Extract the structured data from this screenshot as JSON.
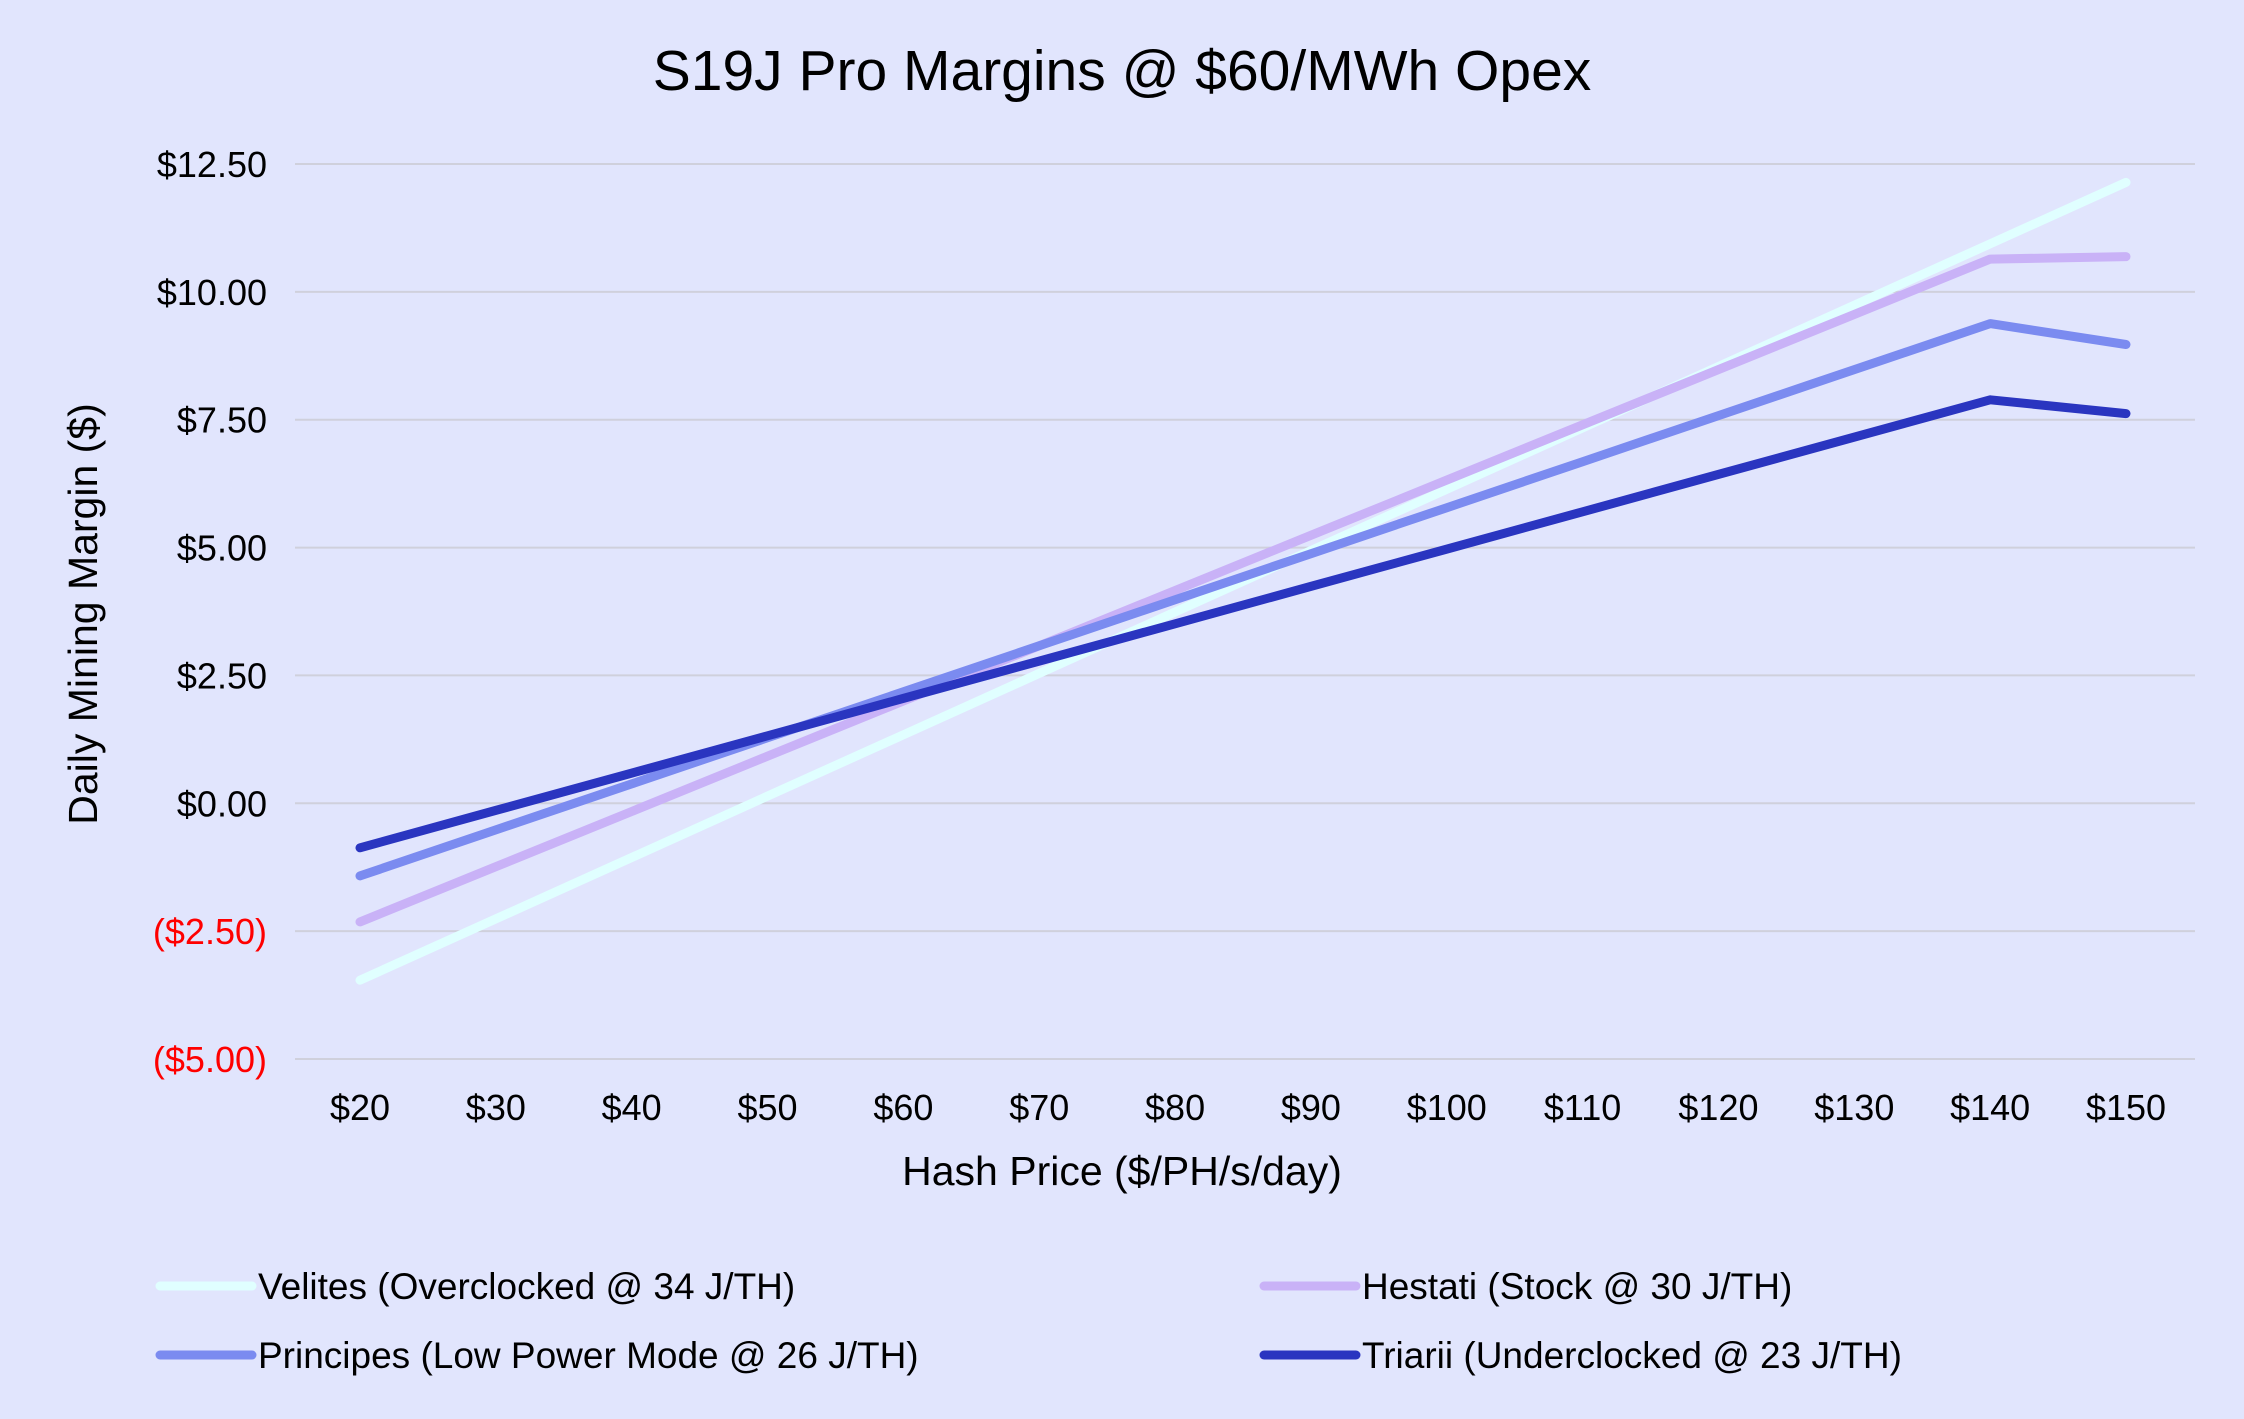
{
  "chart_data": {
    "type": "line",
    "title": "S19J Pro Margins @ $60/MWh Opex",
    "xlabel": "Hash Price ($/PH/s/day)",
    "ylabel": "Daily Mining Margin ($)",
    "x": [
      20,
      30,
      40,
      50,
      60,
      70,
      80,
      90,
      100,
      110,
      120,
      130,
      140,
      150
    ],
    "x_tick_labels": [
      "$20",
      "$30",
      "$40",
      "$50",
      "$60",
      "$70",
      "$80",
      "$90",
      "$100",
      "$110",
      "$120",
      "$130",
      "$140",
      "$150"
    ],
    "y_ticks": [
      {
        "value": 12.5,
        "label": "$12.50",
        "color": "#000000"
      },
      {
        "value": 10.0,
        "label": "$10.00",
        "color": "#000000"
      },
      {
        "value": 7.5,
        "label": "$7.50",
        "color": "#000000"
      },
      {
        "value": 5.0,
        "label": "$5.00",
        "color": "#000000"
      },
      {
        "value": 2.5,
        "label": "$2.50",
        "color": "#000000"
      },
      {
        "value": 0.0,
        "label": "$0.00",
        "color": "#000000"
      },
      {
        "value": -2.5,
        "label": "($2.50)",
        "color": "#ff0000"
      },
      {
        "value": -5.0,
        "label": "($5.00)",
        "color": "#ff0000"
      }
    ],
    "ylim": [
      -5,
      12.5
    ],
    "xlim": [
      20,
      150
    ],
    "grid": true,
    "legend_position": "bottom",
    "series": [
      {
        "name": "Velites (Overclocked @ 34 J/TH)",
        "color": "#e0ffff",
        "values": [
          -3.46,
          -2.26,
          -1.06,
          0.14,
          1.34,
          2.54,
          3.74,
          4.94,
          6.14,
          7.34,
          8.54,
          9.74,
          10.94,
          12.14
        ]
      },
      {
        "name": "Hestati (Stock @ 30 J/TH)",
        "color": "#c9b2f7",
        "values": [
          -2.32,
          -1.24,
          -0.16,
          0.92,
          2.0,
          3.08,
          4.16,
          5.24,
          6.32,
          7.4,
          8.48,
          9.56,
          10.64,
          10.69
        ]
      },
      {
        "name": "Principes (Low Power Mode @ 26 J/TH)",
        "color": "#7b8bf0",
        "values": [
          -1.42,
          -0.52,
          0.38,
          1.28,
          2.18,
          3.08,
          3.98,
          4.88,
          5.78,
          6.68,
          7.58,
          8.48,
          9.38,
          8.97
        ]
      },
      {
        "name": "Triarii (Underclocked @ 23 J/TH)",
        "color": "#2a35c0",
        "values": [
          -0.87,
          -0.14,
          0.59,
          1.32,
          2.05,
          2.78,
          3.51,
          4.24,
          4.97,
          5.7,
          6.43,
          7.16,
          7.89,
          7.62
        ]
      }
    ]
  }
}
